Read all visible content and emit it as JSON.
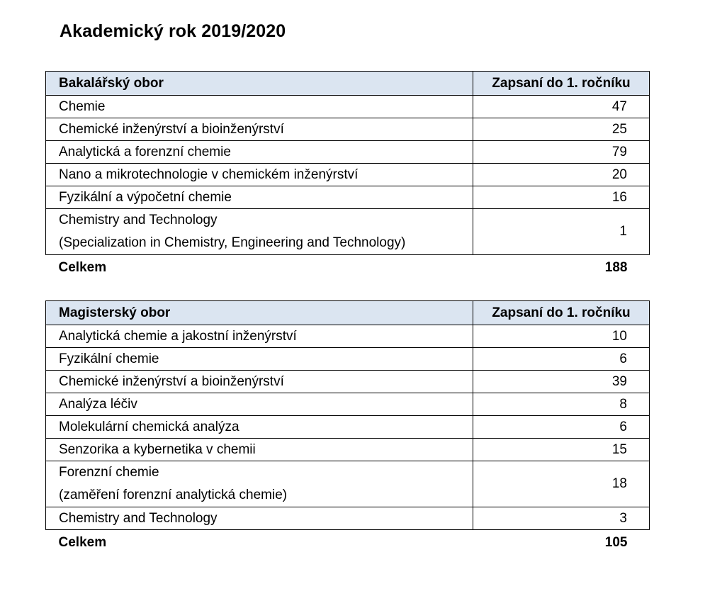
{
  "title": "Akademický rok 2019/2020",
  "bachelor": {
    "header": {
      "field": "Bakalářský obor",
      "enrolled": "Zapsaní do 1. ročníku"
    },
    "rows": [
      {
        "name": "Chemie",
        "value": "47"
      },
      {
        "name": "Chemické inženýrství a bioinženýrství",
        "value": "25"
      },
      {
        "name": "Analytická a forenzní chemie",
        "value": "79"
      },
      {
        "name": "Nano a mikrotechnologie v chemickém inženýrství",
        "value": "20"
      },
      {
        "name": "Fyzikální a výpočetní chemie",
        "value": "16"
      },
      {
        "name": "Chemistry and Technology",
        "name2": "(Specialization in Chemistry, Engineering and Technology)",
        "value": "1"
      }
    ],
    "total": {
      "label": "Celkem",
      "value": "188"
    }
  },
  "master": {
    "header": {
      "field": "Magisterský obor",
      "enrolled": "Zapsaní do 1. ročníku"
    },
    "rows": [
      {
        "name": "Analytická chemie a jakostní inženýrství",
        "value": "10"
      },
      {
        "name": "Fyzikální chemie",
        "value": "6"
      },
      {
        "name": "Chemické inženýrství a bioinženýrství",
        "value": "39"
      },
      {
        "name": "Analýza léčiv",
        "value": "8"
      },
      {
        "name": "Molekulární chemická analýza",
        "value": "6"
      },
      {
        "name": "Senzorika a kybernetika v chemii",
        "value": "15"
      },
      {
        "name": "Forenzní chemie",
        "name2": "(zaměření forenzní analytická chemie)",
        "value": "18"
      },
      {
        "name": "Chemistry and Technology",
        "value": "3"
      }
    ],
    "total": {
      "label": "Celkem",
      "value": "105"
    }
  }
}
